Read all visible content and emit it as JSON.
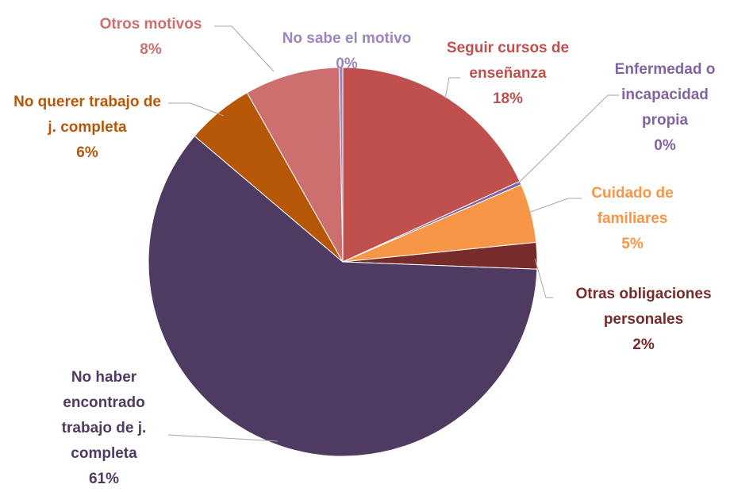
{
  "chart_data": {
    "type": "pie",
    "categories": [
      "Seguir cursos de enseñanza",
      "Enfermedad o incapacidad propia",
      "Cuidado de familiares",
      "Otras obligaciones personales",
      "No haber encontrado trabajo de j. completa",
      "No querer trabajo de j. completa",
      "Otros motivos",
      "No sabe el motivo"
    ],
    "values": [
      18.2,
      0.3,
      4.9,
      2.2,
      60.6,
      5.6,
      7.9,
      0.3
    ],
    "value_labels": [
      "18%",
      "0%",
      "5%",
      "2%",
      "61%",
      "6%",
      "8%",
      "0%"
    ],
    "colors": [
      "#c0504d",
      "#8064a2",
      "#f79646",
      "#772c2a",
      "#4f3b62",
      "#b65708",
      "#cd6f6f",
      "#9b86c0"
    ]
  }
}
